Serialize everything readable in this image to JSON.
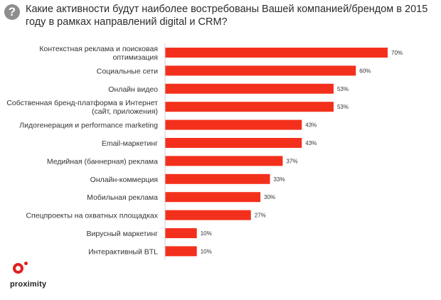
{
  "icon": "question-mark-icon",
  "icon_glyph": "?",
  "chart_data": {
    "type": "bar",
    "orientation": "horizontal",
    "title": "Какие активности будут наиболее востребованы Вашей компанией/брендом в 2015 году в рамках направлений digital и CRM?",
    "categories": [
      "Контекстная реклама и поисковая оптимизация",
      "Социальные сети",
      "Онлайн видео",
      "Собственная бренд-платформа в Интернет (сайт, приложения)",
      "Лидогенерация и performance marketing",
      "Email-маркетинг",
      "Медийная (баннерная) реклама",
      "Онлайн-коммерция",
      "Мобильная реклама",
      "Спецпроекты на охватных площадках",
      "Вирусный маркетинг",
      "Интерактивный BTL"
    ],
    "label_lines": [
      [
        "Контекстная реклама и поисковая",
        "оптимизация"
      ],
      [
        "Социальные сети"
      ],
      [
        "Онлайн видео"
      ],
      [
        "Собственная бренд-платформа в Интернет",
        "(сайт, приложения)"
      ],
      [
        "Лидогенерация и performance marketing"
      ],
      [
        "Email-маркетинг"
      ],
      [
        "Медийная (баннерная) реклама"
      ],
      [
        "Онлайн-коммерция"
      ],
      [
        "Мобильная реклама"
      ],
      [
        "Спецпроекты на охватных площадках"
      ],
      [
        "Вирусный маркетинг"
      ],
      [
        "Интерактивный BTL"
      ]
    ],
    "values": [
      70,
      60,
      53,
      53,
      43,
      43,
      37,
      33,
      30,
      27,
      10,
      10
    ],
    "value_labels": [
      "70%",
      "60%",
      "53%",
      "53%",
      "43%",
      "43%",
      "37%",
      "33%",
      "30%",
      "27%",
      "10%",
      "10%"
    ],
    "unit": "%",
    "xlim": [
      0,
      70
    ],
    "bar_color": "#f3301c",
    "grid": false
  },
  "logo": {
    "text": "proximity",
    "color": "#e21f1f"
  }
}
